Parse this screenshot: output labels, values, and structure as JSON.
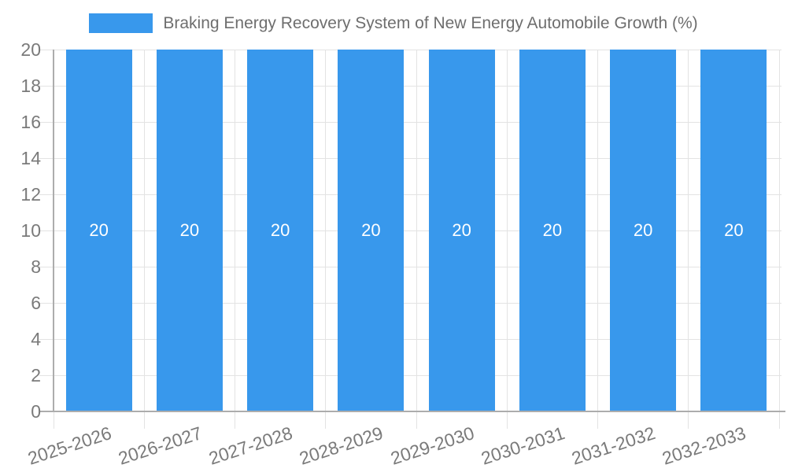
{
  "legend": {
    "label": "Braking Energy Recovery System of New Energy Automobile Growth (%)"
  },
  "chart_data": {
    "type": "bar",
    "title": "Braking Energy Recovery System of New Energy Automobile Growth (%)",
    "categories": [
      "2025-2026",
      "2026-2027",
      "2027-2028",
      "2028-2029",
      "2029-2030",
      "2030-2031",
      "2031-2032",
      "2032-2033"
    ],
    "series": [
      {
        "name": "Braking Energy Recovery System of New Energy Automobile Growth (%)",
        "values": [
          20,
          20,
          20,
          20,
          20,
          20,
          20,
          20
        ],
        "bar_labels": [
          "20",
          "20",
          "20",
          "20",
          "20",
          "20",
          "20",
          "20"
        ]
      }
    ],
    "xlabel": "",
    "ylabel": "",
    "ylim": [
      0,
      20
    ],
    "ytick_step": 2,
    "ytick_labels": [
      "0",
      "2",
      "4",
      "6",
      "8",
      "10",
      "12",
      "14",
      "16",
      "18",
      "20"
    ],
    "grid": true,
    "legend_position": "top",
    "colors": {
      "bar": "#3898EC",
      "bar_label": "#FFFFFF",
      "grid": "#E3E3E3",
      "axis": "#ADADAD",
      "tick_text": "#7A7A7A",
      "legend_text": "#6E6E6E"
    }
  }
}
